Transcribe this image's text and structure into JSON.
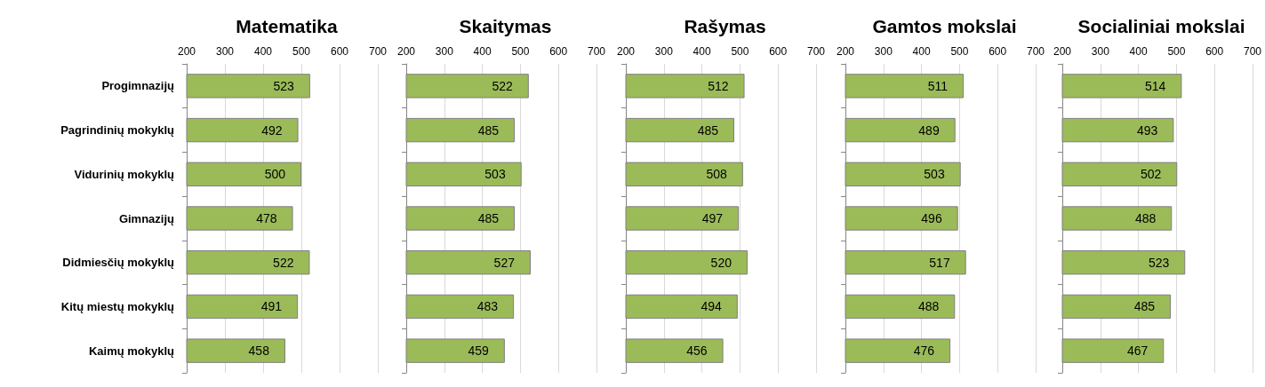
{
  "chart_data": [
    {
      "type": "bar",
      "orientation": "horizontal",
      "title": "Matematika",
      "categories": [
        "Progimnazijų",
        "Pagrindinių mokyklų",
        "Vidurinių mokyklų",
        "Gimnazijų",
        "Didmiesčių mokyklų",
        "Kitų miestų mokyklų",
        "Kaimų mokyklų"
      ],
      "values": [
        523,
        492,
        500,
        478,
        522,
        491,
        458
      ],
      "color": "#9bbb59",
      "xlim": [
        200,
        700
      ],
      "xticks": [
        200,
        300,
        400,
        500,
        600,
        700
      ],
      "grid": "x",
      "data_labels": true
    },
    {
      "type": "bar",
      "orientation": "horizontal",
      "title": "Skaitymas",
      "categories": [
        null,
        null,
        null,
        null,
        null,
        null,
        null
      ],
      "values": [
        522,
        485,
        503,
        485,
        527,
        483,
        459
      ],
      "color": "#9bbb59",
      "xlim": [
        200,
        700
      ],
      "xticks": [
        200,
        300,
        400,
        500,
        600,
        700
      ],
      "grid": "x",
      "data_labels": true,
      "tick_labels": "x"
    },
    {
      "type": "bar",
      "orientation": "horizontal",
      "title": "Rašymas",
      "categories": [
        null,
        null,
        null,
        null,
        null,
        null,
        null
      ],
      "values": [
        512,
        485,
        508,
        497,
        520,
        494,
        456
      ],
      "color": "#9bbb59",
      "xlim": [
        200,
        700
      ],
      "xticks": [
        200,
        300,
        400,
        500,
        600,
        700
      ],
      "grid": "x",
      "data_labels": true,
      "tick_labels": "x"
    },
    {
      "type": "bar",
      "orientation": "horizontal",
      "title": "Gamtos mokslai",
      "categories": [
        null,
        null,
        null,
        null,
        null,
        null,
        null
      ],
      "values": [
        511,
        489,
        503,
        496,
        517,
        488,
        476
      ],
      "color": "#9bbb59",
      "xlim": [
        200,
        700
      ],
      "xticks": [
        200,
        300,
        400,
        500,
        600,
        700
      ],
      "grid": "x",
      "data_labels": true,
      "tick_labels": "x"
    },
    {
      "type": "bar",
      "orientation": "horizontal",
      "title": "Socialiniai mokslai",
      "categories": [
        null,
        null,
        null,
        null,
        null,
        null,
        null
      ],
      "values": [
        514,
        493,
        502,
        488,
        523,
        485,
        467
      ],
      "color": "#9bbb59",
      "xlim": [
        200,
        700
      ],
      "xticks": [
        200,
        300,
        400,
        500,
        600,
        700
      ],
      "grid": "x",
      "data_labels": true,
      "tick_labels": "x"
    }
  ]
}
